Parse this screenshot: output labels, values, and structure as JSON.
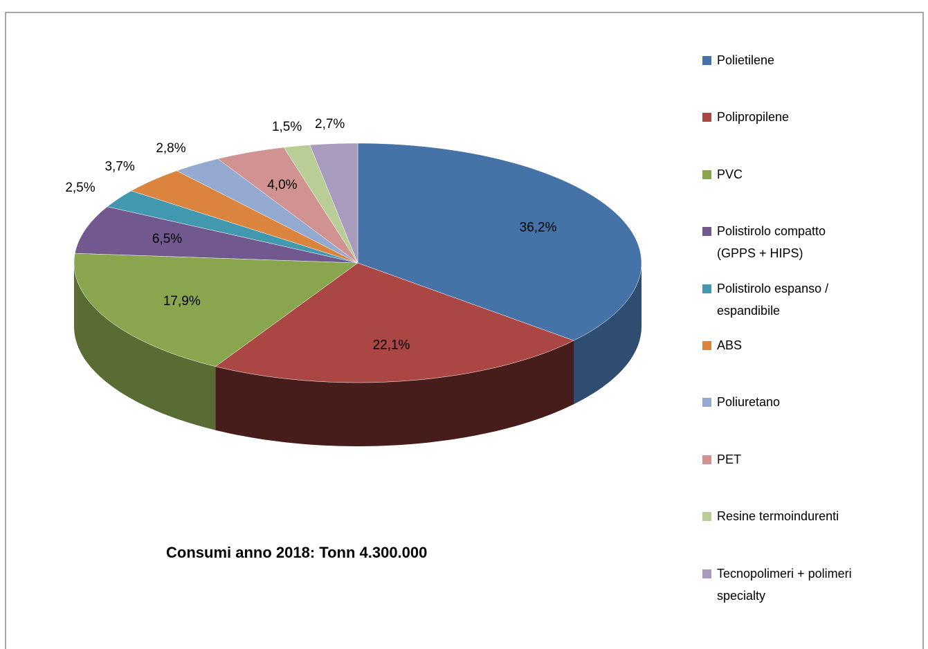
{
  "chart_data": {
    "type": "pie",
    "annotation": "Consumi anno 2018: Tonn 4.300.000",
    "categories": [
      "Polietilene",
      "Polipropilene",
      "PVC",
      "Polistirolo compatto (GPPS + HIPS)",
      "Polistirolo espanso / espandibile",
      "ABS",
      "Poliuretano",
      "PET",
      "Resine termoindurenti",
      "Tecnopolimeri + polimeri specialty"
    ],
    "values": [
      36.2,
      22.1,
      17.9,
      6.5,
      2.5,
      3.7,
      2.8,
      4.0,
      1.5,
      2.7
    ],
    "value_labels": [
      "36,2%",
      "22,1%",
      "17,9%",
      "6,5%",
      "2,5%",
      "3,7%",
      "2,8%",
      "4,0%",
      "1,5%",
      "2,7%"
    ],
    "colors": [
      "#4572a7",
      "#aa4643",
      "#89a54e",
      "#71588f",
      "#4198af",
      "#db843d",
      "#93a9cf",
      "#d19392",
      "#b9cd96",
      "#a99bbd"
    ],
    "legend": "right"
  }
}
